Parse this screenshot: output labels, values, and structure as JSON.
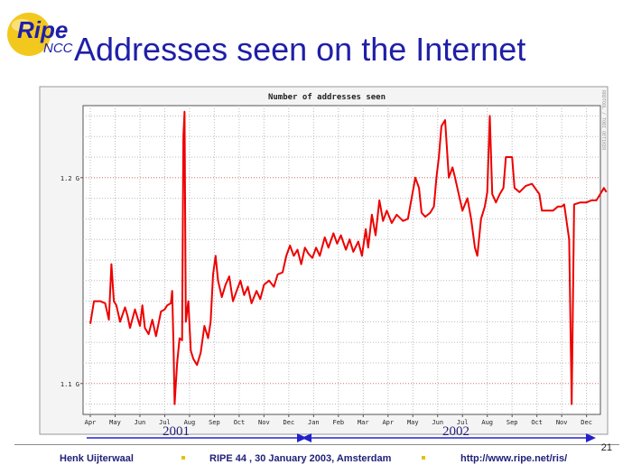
{
  "logo": {
    "word": "Ripe",
    "sub": "NCC"
  },
  "slide": {
    "title": "Addresses seen on the Internet",
    "number": "21"
  },
  "footer": {
    "author": "Henk Uijterwaal",
    "event": "RIPE 44 ,  30 January 2003, Amsterdam",
    "url": "http://www.ripe.net/ris/"
  },
  "annotations": {
    "year1": "2001",
    "year2": "2002"
  },
  "colors": {
    "title": "#1f1fa8",
    "line": "#ee0000",
    "arrow": "#2222cc",
    "grid": "#bbbbbb"
  },
  "chart_data": {
    "type": "line",
    "title": "Number of addresses seen",
    "watermark": "RRDTOOL / TOBI OETIKER",
    "xlabel": "",
    "ylabel": "",
    "y_ticks": [
      {
        "value": 1.1,
        "label": "1.1 G"
      },
      {
        "value": 1.2,
        "label": "1.2 G"
      }
    ],
    "ylim": [
      1.085,
      1.235
    ],
    "x_ticks": [
      "Apr",
      "May",
      "Jun",
      "Jul",
      "Aug",
      "Sep",
      "Oct",
      "Nov",
      "Dec",
      "Jan",
      "Feb",
      "Mar",
      "Apr",
      "May",
      "Jun",
      "Jul",
      "Aug",
      "Sep",
      "Oct",
      "Nov",
      "Dec"
    ],
    "x_range": [
      "2001-04",
      "2002-12"
    ],
    "grid": true,
    "series": [
      {
        "values": [
          [
            0.0,
            1.129
          ],
          [
            0.15,
            1.14
          ],
          [
            0.4,
            1.14
          ],
          [
            0.6,
            1.139
          ],
          [
            0.75,
            1.131
          ],
          [
            0.85,
            1.158
          ],
          [
            0.95,
            1.14
          ],
          [
            1.05,
            1.138
          ],
          [
            1.2,
            1.13
          ],
          [
            1.4,
            1.137
          ],
          [
            1.5,
            1.133
          ],
          [
            1.6,
            1.127
          ],
          [
            1.8,
            1.136
          ],
          [
            2.0,
            1.128
          ],
          [
            2.1,
            1.138
          ],
          [
            2.2,
            1.127
          ],
          [
            2.35,
            1.124
          ],
          [
            2.5,
            1.131
          ],
          [
            2.65,
            1.123
          ],
          [
            2.85,
            1.135
          ],
          [
            3.0,
            1.136
          ],
          [
            3.1,
            1.138
          ],
          [
            3.25,
            1.139
          ],
          [
            3.3,
            1.145
          ],
          [
            3.35,
            1.12
          ],
          [
            3.4,
            1.09
          ],
          [
            3.5,
            1.11
          ],
          [
            3.6,
            1.122
          ],
          [
            3.7,
            1.121
          ],
          [
            3.75,
            1.22
          ],
          [
            3.8,
            1.232
          ],
          [
            3.85,
            1.13
          ],
          [
            3.95,
            1.14
          ],
          [
            4.05,
            1.116
          ],
          [
            4.15,
            1.112
          ],
          [
            4.3,
            1.109
          ],
          [
            4.45,
            1.115
          ],
          [
            4.6,
            1.128
          ],
          [
            4.75,
            1.122
          ],
          [
            4.85,
            1.13
          ],
          [
            4.95,
            1.153
          ],
          [
            5.05,
            1.162
          ],
          [
            5.15,
            1.15
          ],
          [
            5.3,
            1.142
          ],
          [
            5.45,
            1.148
          ],
          [
            5.6,
            1.152
          ],
          [
            5.75,
            1.14
          ],
          [
            5.9,
            1.145
          ],
          [
            6.05,
            1.15
          ],
          [
            6.2,
            1.143
          ],
          [
            6.35,
            1.147
          ],
          [
            6.5,
            1.139
          ],
          [
            6.7,
            1.145
          ],
          [
            6.85,
            1.141
          ],
          [
            7.0,
            1.148
          ],
          [
            7.2,
            1.15
          ],
          [
            7.4,
            1.147
          ],
          [
            7.55,
            1.153
          ],
          [
            7.75,
            1.154
          ],
          [
            7.9,
            1.162
          ],
          [
            8.05,
            1.167
          ],
          [
            8.2,
            1.162
          ],
          [
            8.35,
            1.165
          ],
          [
            8.5,
            1.158
          ],
          [
            8.65,
            1.166
          ],
          [
            8.8,
            1.163
          ],
          [
            8.95,
            1.161
          ],
          [
            9.1,
            1.166
          ],
          [
            9.25,
            1.162
          ],
          [
            9.45,
            1.171
          ],
          [
            9.6,
            1.166
          ],
          [
            9.8,
            1.173
          ],
          [
            9.95,
            1.168
          ],
          [
            10.1,
            1.172
          ],
          [
            10.3,
            1.165
          ],
          [
            10.45,
            1.17
          ],
          [
            10.6,
            1.164
          ],
          [
            10.8,
            1.169
          ],
          [
            10.95,
            1.162
          ],
          [
            11.1,
            1.175
          ],
          [
            11.2,
            1.166
          ],
          [
            11.35,
            1.182
          ],
          [
            11.5,
            1.172
          ],
          [
            11.65,
            1.189
          ],
          [
            11.8,
            1.179
          ],
          [
            11.95,
            1.184
          ],
          [
            12.15,
            1.178
          ],
          [
            12.35,
            1.182
          ],
          [
            12.6,
            1.179
          ],
          [
            12.8,
            1.18
          ],
          [
            12.95,
            1.19
          ],
          [
            13.1,
            1.2
          ],
          [
            13.25,
            1.195
          ],
          [
            13.35,
            1.183
          ],
          [
            13.5,
            1.181
          ],
          [
            13.7,
            1.183
          ],
          [
            13.85,
            1.186
          ],
          [
            13.95,
            1.2
          ],
          [
            14.05,
            1.21
          ],
          [
            14.15,
            1.225
          ],
          [
            14.3,
            1.228
          ],
          [
            14.45,
            1.2
          ],
          [
            14.6,
            1.205
          ],
          [
            14.7,
            1.2
          ],
          [
            14.85,
            1.192
          ],
          [
            15.0,
            1.184
          ],
          [
            15.2,
            1.19
          ],
          [
            15.35,
            1.18
          ],
          [
            15.5,
            1.166
          ],
          [
            15.6,
            1.162
          ],
          [
            15.75,
            1.18
          ],
          [
            15.9,
            1.186
          ],
          [
            16.0,
            1.193
          ],
          [
            16.1,
            1.23
          ],
          [
            16.2,
            1.192
          ],
          [
            16.35,
            1.188
          ],
          [
            16.5,
            1.192
          ],
          [
            16.65,
            1.195
          ],
          [
            16.75,
            1.21
          ],
          [
            17.0,
            1.21
          ],
          [
            17.1,
            1.195
          ],
          [
            17.3,
            1.193
          ],
          [
            17.55,
            1.196
          ],
          [
            17.8,
            1.197
          ],
          [
            18.1,
            1.192
          ],
          [
            18.2,
            1.184
          ],
          [
            18.45,
            1.184
          ],
          [
            18.65,
            1.184
          ],
          [
            18.85,
            1.186
          ],
          [
            19.0,
            1.186
          ],
          [
            19.1,
            1.187
          ],
          [
            19.3,
            1.17
          ],
          [
            19.4,
            1.09
          ],
          [
            19.5,
            1.187
          ],
          [
            19.75,
            1.188
          ],
          [
            20.0,
            1.188
          ],
          [
            20.2,
            1.189
          ],
          [
            20.4,
            1.189
          ],
          [
            20.55,
            1.192
          ],
          [
            20.7,
            1.195
          ],
          [
            20.8,
            1.193
          ]
        ]
      }
    ]
  }
}
